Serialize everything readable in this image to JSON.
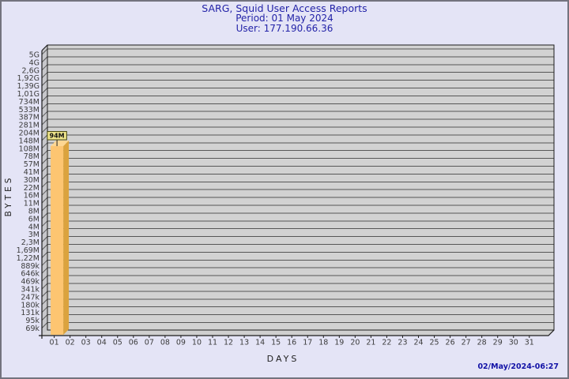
{
  "header": {
    "title": "SARG, Squid User Access Reports",
    "period_line": "Period: 01 May 2024",
    "user_line": "User: 177.190.66.36"
  },
  "footer": {
    "generated": "02/May/2024-06:27"
  },
  "chart_data": {
    "type": "bar",
    "title": "SARG, Squid User Access Reports",
    "subtitle_lines": [
      "Period: 01 May 2024",
      "User: 177.190.66.36"
    ],
    "xlabel": "DAYS",
    "ylabel": "BYTES",
    "y_scale": "log",
    "grid": "horizontal",
    "legend": "none",
    "y_axis_tick_labels_top_to_bottom": [
      "5G",
      "4G",
      "2,6G",
      "1,92G",
      "1,39G",
      "1,01G",
      "734M",
      "533M",
      "387M",
      "281M",
      "204M",
      "148M",
      "108M",
      "78M",
      "57M",
      "41M",
      "30M",
      "22M",
      "16M",
      "11M",
      "8M",
      "6M",
      "4M",
      "3M",
      "2,3M",
      "1,69M",
      "1,22M",
      "889k",
      "646k",
      "469k",
      "341k",
      "247k",
      "180k",
      "131k",
      "95k",
      "69k"
    ],
    "y_top_value": 5000000000,
    "y_bottom_value": 69000,
    "categories": [
      "01",
      "02",
      "03",
      "04",
      "05",
      "06",
      "07",
      "08",
      "09",
      "10",
      "11",
      "12",
      "13",
      "14",
      "15",
      "16",
      "17",
      "18",
      "19",
      "20",
      "21",
      "22",
      "23",
      "24",
      "25",
      "26",
      "27",
      "28",
      "29",
      "30",
      "31"
    ],
    "values": [
      94000000,
      0,
      0,
      0,
      0,
      0,
      0,
      0,
      0,
      0,
      0,
      0,
      0,
      0,
      0,
      0,
      0,
      0,
      0,
      0,
      0,
      0,
      0,
      0,
      0,
      0,
      0,
      0,
      0,
      0,
      0
    ],
    "bar_labels": [
      {
        "category": "01",
        "label": "94M"
      }
    ]
  },
  "colors": {
    "page_bg": "#e4e4f6",
    "page_border": "#73737e",
    "title_text": "#2323a8",
    "footer_text": "#1212a6",
    "plot_bg": "#d2d2d2",
    "wall_bg": "#c7c7cb",
    "floor_bg": "#cfcfcf",
    "grid_line": "#575757",
    "axis_line": "#1c1c1c",
    "tick_text": "#3c3c3c",
    "axis_title_text": "#1f1f1f",
    "bar_face": "#fdc571",
    "bar_side": "#dba33e",
    "bar_top": "#fdd692",
    "bar_label_bg": "#f0e68c",
    "bar_label_border": "#44440a",
    "bar_label_text": "#111111"
  }
}
